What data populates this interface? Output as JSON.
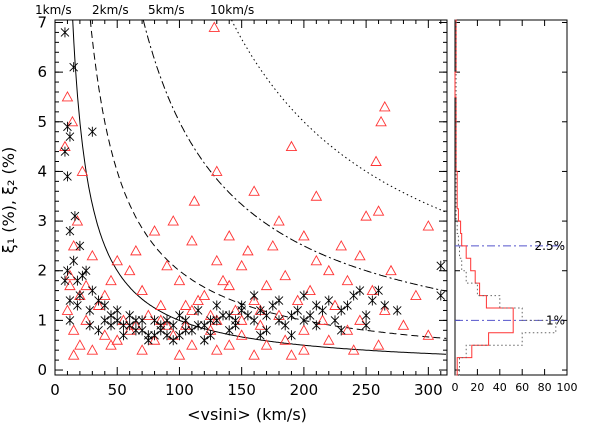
{
  "chart_data": [
    {
      "type": "scatter",
      "xlabel": "<vsini> (km/s)",
      "ylabel": "ξ₁ (%), ξ₂ (%)",
      "xlim": [
        0,
        315
      ],
      "ylim": [
        -0.1,
        7.05
      ],
      "xticks": [
        0,
        50,
        100,
        150,
        200,
        250,
        300
      ],
      "yticks": [
        0,
        1,
        2,
        3,
        4,
        5,
        6,
        7
      ],
      "grid": false,
      "top_labels": [
        "1km/s",
        "2km/s",
        "5km/s",
        "10km/s"
      ],
      "colors": {
        "triangles": "#ff3333",
        "crosses": "#000000",
        "curves": "#000000"
      },
      "curves": [
        {
          "style": "solid",
          "k": 1,
          "label_ref": "1km/s"
        },
        {
          "style": "dashed",
          "k": 2,
          "label_ref": "2km/s"
        },
        {
          "style": "dashdot",
          "k": 5,
          "label_ref": "5km/s"
        },
        {
          "style": "dotted",
          "k": 10,
          "label_ref": "10km/s"
        }
      ],
      "series": [
        {
          "marker": "triangle",
          "points": [
            [
              128,
              6.9
            ],
            [
              265,
              5.3
            ],
            [
              262,
              5.0
            ],
            [
              190,
              4.5
            ],
            [
              258,
              4.2
            ],
            [
              130,
              4.0
            ],
            [
              160,
              3.6
            ],
            [
              210,
              3.5
            ],
            [
              112,
              3.4
            ],
            [
              250,
              3.1
            ],
            [
              260,
              3.2
            ],
            [
              300,
              2.9
            ],
            [
              180,
              3.0
            ],
            [
              95,
              3.0
            ],
            [
              140,
              2.7
            ],
            [
              200,
              2.7
            ],
            [
              230,
              2.5
            ],
            [
              80,
              2.8
            ],
            [
              65,
              2.4
            ],
            [
              110,
              2.6
            ],
            [
              155,
              2.4
            ],
            [
              175,
              2.5
            ],
            [
              210,
              2.2
            ],
            [
              245,
              2.3
            ],
            [
              30,
              2.3
            ],
            [
              50,
              2.2
            ],
            [
              130,
              2.2
            ],
            [
              220,
              2.0
            ],
            [
              270,
              2.0
            ],
            [
              60,
              2.0
            ],
            [
              90,
              2.1
            ],
            [
              150,
              2.1
            ],
            [
              185,
              1.9
            ],
            [
              235,
              1.8
            ],
            [
              15,
              2.5
            ],
            [
              45,
              1.8
            ],
            [
              100,
              1.8
            ],
            [
              140,
              1.7
            ],
            [
              170,
              1.7
            ],
            [
              205,
              1.6
            ],
            [
              255,
              1.6
            ],
            [
              290,
              1.5
            ],
            [
              20,
              1.5
            ],
            [
              70,
              1.6
            ],
            [
              120,
              1.5
            ],
            [
              160,
              1.4
            ],
            [
              195,
              1.4
            ],
            [
              225,
              1.3
            ],
            [
              265,
              1.2
            ],
            [
              10,
              1.2
            ],
            [
              35,
              1.3
            ],
            [
              85,
              1.3
            ],
            [
              110,
              1.2
            ],
            [
              145,
              1.2
            ],
            [
              180,
              1.1
            ],
            [
              215,
              1.0
            ],
            [
              245,
              1.0
            ],
            [
              280,
              0.9
            ],
            [
              25,
              1.0
            ],
            [
              55,
              1.0
            ],
            [
              75,
              1.1
            ],
            [
              105,
              0.9
            ],
            [
              130,
              1.0
            ],
            [
              165,
              0.9
            ],
            [
              200,
              0.8
            ],
            [
              235,
              0.8
            ],
            [
              300,
              0.7
            ],
            [
              15,
              0.8
            ],
            [
              40,
              0.7
            ],
            [
              60,
              0.8
            ],
            [
              95,
              0.7
            ],
            [
              125,
              0.8
            ],
            [
              150,
              0.7
            ],
            [
              185,
              0.6
            ],
            [
              220,
              0.6
            ],
            [
              260,
              0.5
            ],
            [
              20,
              0.5
            ],
            [
              45,
              0.5
            ],
            [
              80,
              0.6
            ],
            [
              110,
              0.5
            ],
            [
              140,
              0.5
            ],
            [
              170,
              0.5
            ],
            [
              200,
              0.4
            ],
            [
              30,
              0.4
            ],
            [
              70,
              0.4
            ],
            [
              100,
              0.3
            ],
            [
              130,
              0.4
            ],
            [
              160,
              0.3
            ],
            [
              190,
              0.3
            ],
            [
              240,
              0.4
            ],
            [
              15,
              0.3
            ],
            [
              50,
              0.6
            ],
            [
              90,
              0.9
            ],
            [
              115,
              1.4
            ],
            [
              135,
              1.8
            ],
            [
              165,
              1.2
            ],
            [
              150,
              1.0
            ],
            [
              125,
              1.1
            ],
            [
              105,
              1.3
            ],
            [
              85,
              1.0
            ],
            [
              65,
              0.9
            ],
            [
              12,
              1.7
            ],
            [
              18,
              3.0
            ],
            [
              22,
              4.0
            ],
            [
              10,
              5.5
            ],
            [
              14,
              5.0
            ],
            [
              8,
              4.5
            ],
            [
              12,
              1.9
            ],
            [
              25,
              1.7
            ],
            [
              40,
              1.5
            ]
          ]
        },
        {
          "marker": "cross",
          "points": [
            [
              8,
              6.8
            ],
            [
              15,
              6.1
            ],
            [
              10,
              4.9
            ],
            [
              12,
              4.7
            ],
            [
              30,
              4.8
            ],
            [
              8,
              4.4
            ],
            [
              10,
              3.9
            ],
            [
              16,
              3.1
            ],
            [
              12,
              2.8
            ],
            [
              20,
              2.5
            ],
            [
              15,
              2.2
            ],
            [
              10,
              2.0
            ],
            [
              25,
              2.0
            ],
            [
              18,
              1.8
            ],
            [
              8,
              1.8
            ],
            [
              30,
              1.6
            ],
            [
              20,
              1.5
            ],
            [
              35,
              1.4
            ],
            [
              12,
              1.4
            ],
            [
              40,
              1.3
            ],
            [
              28,
              1.2
            ],
            [
              45,
              1.1
            ],
            [
              50,
              1.0
            ],
            [
              55,
              0.9
            ],
            [
              60,
              0.9
            ],
            [
              65,
              0.8
            ],
            [
              70,
              0.8
            ],
            [
              75,
              0.7
            ],
            [
              80,
              0.7
            ],
            [
              85,
              0.8
            ],
            [
              90,
              0.7
            ],
            [
              95,
              0.6
            ],
            [
              100,
              0.7
            ],
            [
              105,
              0.8
            ],
            [
              110,
              0.8
            ],
            [
              115,
              0.9
            ],
            [
              120,
              0.9
            ],
            [
              125,
              1.0
            ],
            [
              130,
              1.0
            ],
            [
              135,
              1.1
            ],
            [
              140,
              1.1
            ],
            [
              145,
              1.0
            ],
            [
              150,
              1.2
            ],
            [
              155,
              1.1
            ],
            [
              160,
              1.0
            ],
            [
              165,
              1.2
            ],
            [
              170,
              1.1
            ],
            [
              175,
              1.3
            ],
            [
              180,
              1.0
            ],
            [
              185,
              0.9
            ],
            [
              190,
              1.1
            ],
            [
              195,
              1.2
            ],
            [
              200,
              1.0
            ],
            [
              205,
              1.1
            ],
            [
              210,
              1.3
            ],
            [
              215,
              1.2
            ],
            [
              220,
              1.4
            ],
            [
              225,
              1.0
            ],
            [
              230,
              1.2
            ],
            [
              235,
              1.3
            ],
            [
              240,
              1.5
            ],
            [
              245,
              1.6
            ],
            [
              250,
              1.1
            ],
            [
              255,
              1.4
            ],
            [
              260,
              1.6
            ],
            [
              265,
              1.3
            ],
            [
              275,
              1.2
            ],
            [
              310,
              2.1
            ],
            [
              310,
              1.5
            ],
            [
              200,
              1.5
            ],
            [
              180,
              1.4
            ],
            [
              160,
              1.5
            ],
            [
              150,
              1.3
            ],
            [
              130,
              1.3
            ],
            [
              115,
              1.2
            ],
            [
              100,
              1.1
            ],
            [
              90,
              1.0
            ],
            [
              80,
              1.0
            ],
            [
              70,
              1.0
            ],
            [
              60,
              1.1
            ],
            [
              50,
              1.2
            ],
            [
              40,
              1.0
            ],
            [
              35,
              0.8
            ],
            [
              55,
              0.7
            ],
            [
              75,
              0.6
            ],
            [
              95,
              0.9
            ],
            [
              120,
              0.6
            ],
            [
              140,
              0.8
            ],
            [
              170,
              0.8
            ],
            [
              190,
              0.7
            ],
            [
              210,
              0.9
            ],
            [
              230,
              0.8
            ],
            [
              250,
              0.9
            ],
            [
              45,
              0.9
            ],
            [
              65,
              1.0
            ],
            [
              85,
              0.9
            ],
            [
              105,
              1.0
            ],
            [
              125,
              0.7
            ],
            [
              145,
              0.9
            ],
            [
              165,
              0.7
            ],
            [
              22,
              1.9
            ],
            [
              18,
              1.3
            ],
            [
              12,
              1.0
            ],
            [
              28,
              0.9
            ]
          ]
        }
      ]
    },
    {
      "type": "histogram",
      "orientation": "horizontal",
      "xlim": [
        0,
        100
      ],
      "xticks": [
        0,
        20,
        40,
        60,
        80,
        100
      ],
      "ylim": [
        -0.1,
        7.05
      ],
      "colors": {
        "red": "#ff3333",
        "gray": "#666666",
        "reference_line": "#5555cc"
      },
      "reference_lines": [
        {
          "y": 2.5,
          "label": "2.5%"
        },
        {
          "y": 1.0,
          "label": "1%"
        }
      ],
      "bins": [
        -0.1,
        0.25,
        0.5,
        0.75,
        1.0,
        1.25,
        1.5,
        1.75,
        2.0,
        2.25,
        2.5,
        2.75,
        3.0,
        3.25,
        3.5,
        4.0,
        4.5,
        5.0,
        5.5,
        6.0,
        7.05
      ],
      "series": [
        {
          "name": "",
          "style": "solid-red",
          "counts": [
            2,
            15,
            30,
            52,
            52,
            28,
            22,
            18,
            14,
            10,
            6,
            5,
            3,
            2,
            2,
            1,
            1,
            1,
            0,
            1
          ]
        },
        {
          "name": "",
          "style": "dotted-gray",
          "counts": [
            4,
            10,
            60,
            90,
            60,
            40,
            20,
            10,
            6,
            4,
            3,
            2,
            1,
            1,
            1,
            1,
            1,
            1,
            1,
            1
          ]
        }
      ]
    }
  ]
}
